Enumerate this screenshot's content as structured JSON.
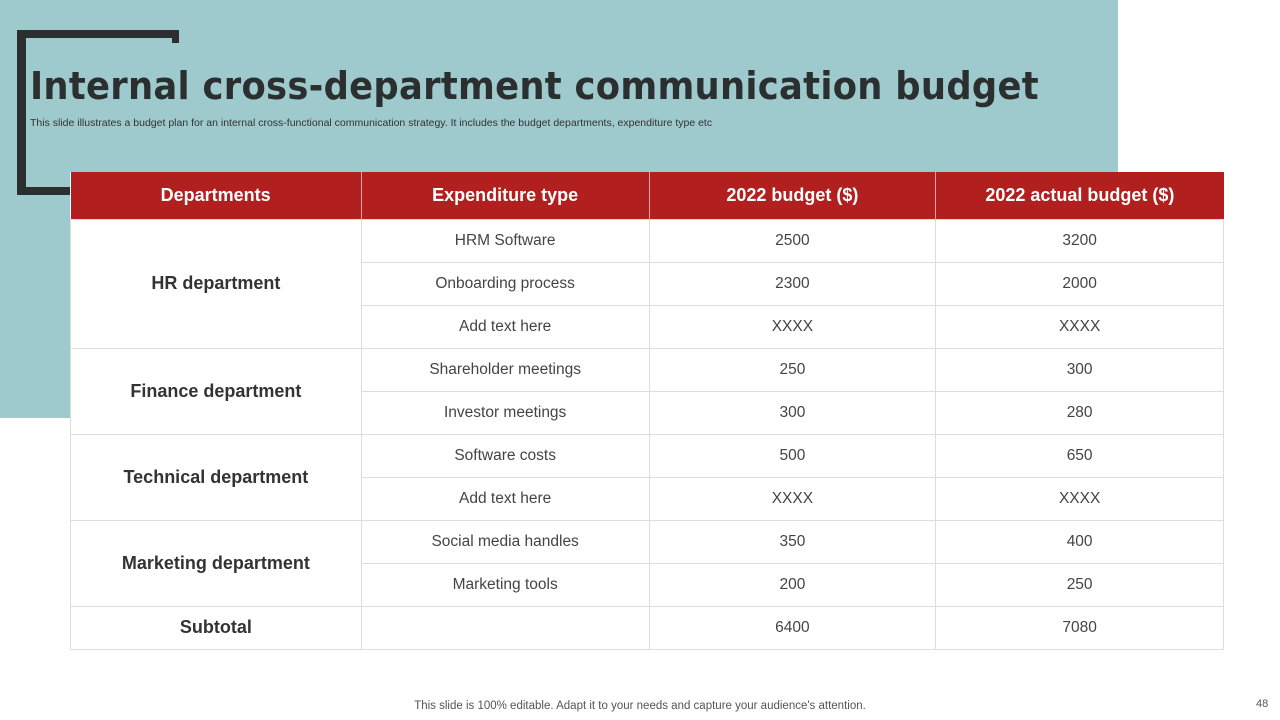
{
  "title": "Internal cross-department communication budget",
  "subtitle": "This slide illustrates a budget plan for an internal cross-functional communication strategy. It includes the budget departments, expenditure type etc",
  "table": {
    "headers": [
      "Departments",
      "Expenditure type",
      "2022 budget ($)",
      "2022 actual budget ($)"
    ],
    "groups": [
      {
        "department": "HR department",
        "rows": [
          [
            "HRM Software",
            "2500",
            "3200"
          ],
          [
            "Onboarding process",
            "2300",
            "2000"
          ],
          [
            "Add text here",
            "XXXX",
            "XXXX"
          ]
        ]
      },
      {
        "department": "Finance department",
        "rows": [
          [
            "Shareholder meetings",
            "250",
            "300"
          ],
          [
            "Investor  meetings",
            "300",
            "280"
          ]
        ]
      },
      {
        "department": "Technical department",
        "rows": [
          [
            "Software costs",
            "500",
            "650"
          ],
          [
            "Add text here",
            "XXXX",
            "XXXX"
          ]
        ]
      },
      {
        "department": "Marketing department",
        "rows": [
          [
            "Social media handles",
            "350",
            "400"
          ],
          [
            "Marketing tools",
            "200",
            "250"
          ]
        ]
      }
    ],
    "subtotal": {
      "label": "Subtotal",
      "expenditure": "",
      "budget": "6400",
      "actual": "7080"
    }
  },
  "footer": "This slide is 100% editable. Adapt it to your needs and capture your audience's attention.",
  "page_number": "48",
  "colors": {
    "header": "#b11f1e",
    "background_panel": "#9ec9cd",
    "bracket": "#2b2f30"
  }
}
